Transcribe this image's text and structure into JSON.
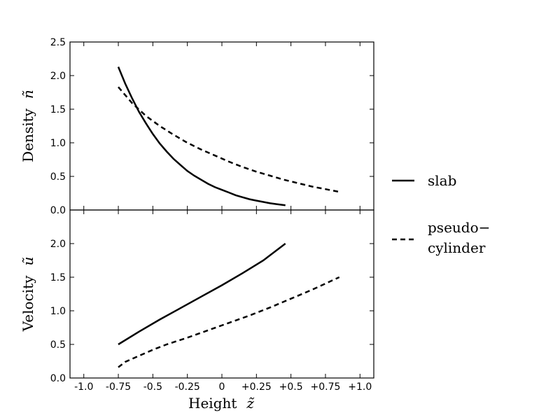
{
  "chart_data": {
    "type": "line",
    "x_axis": {
      "label": "Height",
      "symbol": "z̃",
      "range": [
        -1.1,
        1.1
      ],
      "ticks": [
        -1.0,
        -0.75,
        -0.5,
        -0.25,
        0,
        0.25,
        0.5,
        0.75,
        1.0
      ],
      "tick_labels": [
        "-1.0",
        "-0.75",
        "-0.5",
        "-0.25",
        "0",
        "+0.25",
        "+0.5",
        "+0.75",
        "+1.0"
      ]
    },
    "panels": [
      {
        "id": "density",
        "ylabel": "Density",
        "ysymbol": "ñ",
        "ylim": [
          0,
          2.5
        ],
        "yticks": [
          0,
          0.5,
          1.0,
          1.5,
          2.0,
          2.5
        ],
        "ytick_labels": [
          "0.0",
          "0.5",
          "1.0",
          "1.5",
          "2.0",
          "2.5"
        ],
        "series": [
          {
            "name": "slab",
            "style": "solid",
            "x": [
              -0.75,
              -0.7,
              -0.65,
              -0.6,
              -0.55,
              -0.5,
              -0.45,
              -0.4,
              -0.35,
              -0.3,
              -0.25,
              -0.2,
              -0.15,
              -0.1,
              -0.05,
              0,
              0.05,
              0.1,
              0.15,
              0.2,
              0.25,
              0.3,
              0.35,
              0.4,
              0.46
            ],
            "y": [
              2.13,
              1.88,
              1.66,
              1.46,
              1.29,
              1.13,
              0.99,
              0.87,
              0.76,
              0.67,
              0.58,
              0.51,
              0.45,
              0.39,
              0.34,
              0.3,
              0.26,
              0.22,
              0.19,
              0.16,
              0.14,
              0.12,
              0.1,
              0.085,
              0.07
            ]
          },
          {
            "name": "pseudo−cylinder",
            "style": "dashed",
            "x": [
              -0.75,
              -0.65,
              -0.55,
              -0.45,
              -0.35,
              -0.25,
              -0.15,
              -0.05,
              0.05,
              0.15,
              0.25,
              0.35,
              0.45,
              0.55,
              0.65,
              0.75,
              0.85
            ],
            "y": [
              1.83,
              1.59,
              1.4,
              1.25,
              1.12,
              1.0,
              0.9,
              0.81,
              0.72,
              0.64,
              0.57,
              0.51,
              0.45,
              0.4,
              0.35,
              0.31,
              0.27
            ]
          }
        ]
      },
      {
        "id": "velocity",
        "ylabel": "Velocity",
        "ysymbol": "ũ",
        "ylim": [
          0,
          2.5
        ],
        "yticks": [
          0,
          0.5,
          1.0,
          1.5,
          2.0
        ],
        "ytick_labels": [
          "0.0",
          "0.5",
          "1.0",
          "1.5",
          "2.0"
        ],
        "series": [
          {
            "name": "slab",
            "style": "solid",
            "x": [
              -0.75,
              -0.6,
              -0.45,
              -0.3,
              -0.15,
              0,
              0.15,
              0.3,
              0.46
            ],
            "y": [
              0.5,
              0.69,
              0.87,
              1.04,
              1.21,
              1.38,
              1.56,
              1.75,
              2.0
            ]
          },
          {
            "name": "pseudo−cylinder",
            "style": "dashed",
            "x": [
              -0.75,
              -0.7,
              -0.6,
              -0.5,
              -0.4,
              -0.25,
              -0.1,
              0.05,
              0.2,
              0.35,
              0.5,
              0.65,
              0.85
            ],
            "y": [
              0.16,
              0.24,
              0.33,
              0.42,
              0.5,
              0.6,
              0.71,
              0.82,
              0.93,
              1.05,
              1.18,
              1.31,
              1.5
            ]
          }
        ]
      }
    ],
    "legend": {
      "placement": "right",
      "entries": [
        {
          "style": "solid",
          "lines": [
            "slab"
          ]
        },
        {
          "style": "dashed",
          "lines": [
            "pseudo−",
            "cylinder"
          ]
        }
      ]
    },
    "grid": false
  }
}
